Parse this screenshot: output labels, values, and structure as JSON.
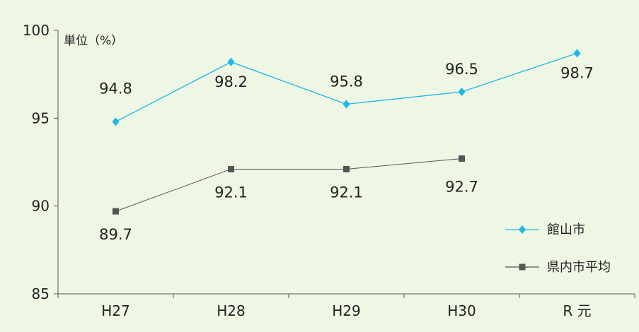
{
  "chart_data": {
    "type": "line",
    "unit_label": "単位（%）",
    "categories": [
      "H27",
      "H28",
      "H29",
      "H30",
      "R 元"
    ],
    "ylim": [
      85,
      100
    ],
    "yticks": [
      85,
      90,
      95,
      100
    ],
    "grid": false,
    "legend_position": "bottom-right",
    "series": [
      {
        "name": "館山市",
        "color": "#1ab8e8",
        "marker": "diamond",
        "values": [
          94.8,
          98.2,
          95.8,
          96.5,
          98.7
        ],
        "labels": [
          "94.8",
          "98.2",
          "95.8",
          "96.5",
          "98.7"
        ]
      },
      {
        "name": "県内市平均",
        "color": "#555555",
        "marker": "square",
        "values": [
          89.7,
          92.1,
          92.1,
          92.7,
          null
        ],
        "labels": [
          "89.7",
          "92.1",
          "92.1",
          "92.7",
          ""
        ]
      }
    ]
  }
}
